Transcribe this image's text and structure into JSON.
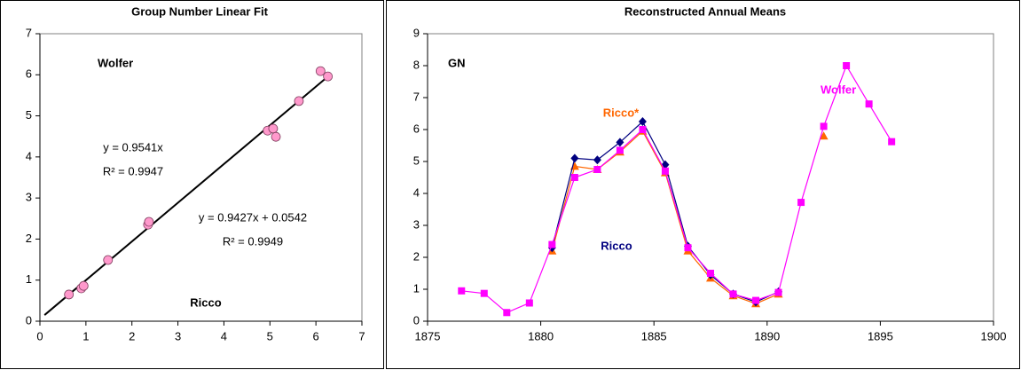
{
  "chart_data": [
    {
      "type": "scatter",
      "title": "Group Number Linear Fit",
      "xlim": [
        0,
        7
      ],
      "ylim": [
        0,
        7
      ],
      "xticks": [
        0,
        1,
        2,
        3,
        4,
        5,
        6,
        7
      ],
      "yticks": [
        0,
        1,
        2,
        3,
        4,
        5,
        6,
        7
      ],
      "series": [
        {
          "color": "#ff99cc",
          "x": [
            0.63,
            0.9,
            0.95,
            1.48,
            2.35,
            2.37,
            4.95,
            5.07,
            5.13,
            5.63,
            6.1,
            6.26
          ],
          "values": [
            0.65,
            0.8,
            0.86,
            1.49,
            2.35,
            2.42,
            4.64,
            4.69,
            4.49,
            5.36,
            6.09,
            5.96
          ]
        }
      ],
      "trendline": {
        "x": [
          0.1,
          6.2
        ],
        "values": [
          0.15,
          5.9
        ],
        "color": "#000000"
      },
      "annotations": [
        "Wolfer",
        "Ricco",
        "y = 0.9541x",
        "R² = 0.9947",
        "y = 0.9427x + 0.0542",
        "R² = 0.9949"
      ]
    },
    {
      "type": "line",
      "title": "Reconstructed Annual Means",
      "xlim": [
        1875,
        1900
      ],
      "ylim": [
        0,
        9
      ],
      "xticks": [
        1875,
        1880,
        1885,
        1890,
        1895,
        1900
      ],
      "yticks": [
        0,
        1,
        2,
        3,
        4,
        5,
        6,
        7,
        8,
        9
      ],
      "series": [
        {
          "name": "Wolfer",
          "color": "#ff00ff",
          "marker": "square",
          "x": [
            1876.5,
            1877.5,
            1878.5,
            1879.5,
            1880.5,
            1881.5,
            1882.5,
            1883.5,
            1884.5,
            1885.5,
            1886.5,
            1887.5,
            1888.5,
            1889.5,
            1890.5,
            1891.5,
            1892.5,
            1893.5,
            1894.5,
            1895.5
          ],
          "values": [
            0.95,
            0.87,
            0.27,
            0.57,
            2.4,
            4.5,
            4.75,
            5.35,
            6.0,
            4.7,
            2.3,
            1.5,
            0.85,
            0.65,
            0.9,
            3.72,
            6.1,
            8.0,
            6.8,
            5.62
          ]
        },
        {
          "name": "Ricco",
          "color": "#000080",
          "marker": "diamond",
          "x": [
            1880.5,
            1881.5,
            1882.5,
            1883.5,
            1884.5,
            1885.5,
            1886.5,
            1887.5,
            1888.5,
            1889.5,
            1890.5
          ],
          "values": [
            2.3,
            5.1,
            5.05,
            5.6,
            6.25,
            4.9,
            2.35,
            1.45,
            0.85,
            0.6,
            0.92
          ]
        },
        {
          "name": "Ricco*",
          "color": "#ff6600",
          "marker": "triangle",
          "x": [
            1880.5,
            1881.5,
            1882.5,
            1883.5,
            1884.5,
            1885.5,
            1886.5,
            1887.5,
            1888.5,
            1889.5,
            1890.5,
            1891.5,
            1892.5
          ],
          "values": [
            2.2,
            4.85,
            4.75,
            5.3,
            5.95,
            4.65,
            2.2,
            1.35,
            0.8,
            0.55,
            0.85,
            null,
            5.8
          ]
        }
      ],
      "annotations": [
        "GN"
      ]
    }
  ]
}
